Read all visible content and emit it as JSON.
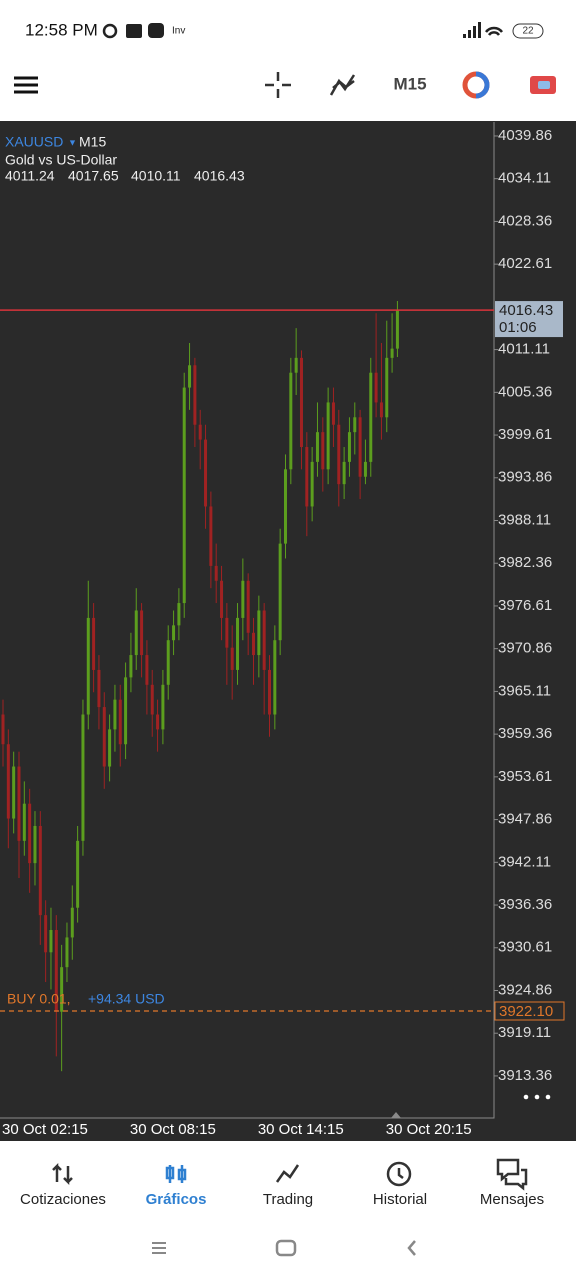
{
  "status_bar": {
    "time": "12:58 PM",
    "battery": "22"
  },
  "toolbar": {
    "timeframe": "M15"
  },
  "chart_data": {
    "type": "candlestick",
    "symbol": "XAUUSD",
    "timeframe": "M15",
    "description": "Gold vs US-Dollar",
    "countdown": "01:06",
    "up_color": "#5c9e1e",
    "down_color": "#a02222",
    "price_line_color": "#d9333a",
    "categories": [
      "30 Oct 02:15",
      null,
      null,
      null,
      null,
      null,
      null,
      null,
      null,
      null,
      null,
      null,
      null,
      null,
      null,
      null,
      null,
      null,
      null,
      null,
      null,
      null,
      null,
      null,
      "30 Oct 08:15",
      null,
      null,
      null,
      null,
      null,
      null,
      null,
      null,
      null,
      null,
      null,
      null,
      null,
      null,
      null,
      null,
      null,
      null,
      null,
      null,
      null,
      null,
      null,
      "30 Oct 14:15",
      null,
      null,
      null,
      null,
      null,
      null,
      null,
      null,
      null,
      null,
      null,
      null,
      null,
      null,
      null,
      null,
      null,
      null,
      null,
      null,
      null,
      null,
      null,
      "30 Oct 20:15",
      null,
      null
    ],
    "open": [
      3962,
      3958,
      3948,
      3955,
      3945,
      3950,
      3942,
      3947,
      3935,
      3930,
      3933,
      3922,
      3928,
      3932,
      3936,
      3945,
      3962,
      3975,
      3968,
      3963,
      3955,
      3960,
      3964,
      3958,
      3967,
      3970,
      3976,
      3970,
      3966,
      3962,
      3960,
      3966,
      3972,
      3974,
      3977,
      4006,
      4009,
      4001,
      3999,
      3990,
      3982,
      3980,
      3975,
      3971,
      3968,
      3975,
      3980,
      3973,
      3970,
      3976,
      3968,
      3962,
      3972,
      3985,
      3995,
      4008,
      4010,
      3998,
      3990,
      3996,
      4000,
      3995,
      4004,
      4001,
      3993,
      3996,
      4000,
      4002,
      3994,
      3996,
      4008,
      4004,
      4002,
      4010,
      4011.24
    ],
    "high": [
      3964,
      3960,
      3957,
      3957,
      3953,
      3952,
      3949,
      3949,
      3937,
      3936,
      3935,
      3931,
      3934,
      3939,
      3947,
      3964,
      3980,
      3977,
      3970,
      3965,
      3962,
      3966,
      3966,
      3969,
      3973,
      3979,
      3977,
      3972,
      3968,
      3964,
      3968,
      3974,
      3976,
      3979,
      4008,
      4012,
      4010,
      4003,
      4001,
      3992,
      3985,
      3982,
      3977,
      3974,
      3977,
      3983,
      3981,
      3975,
      3978,
      3977,
      3970,
      3974,
      3987,
      3997,
      4010,
      4014,
      4011,
      4000,
      3998,
      4004,
      4002,
      4006,
      4006,
      4003,
      3998,
      4002,
      4004,
      4003,
      3999,
      4010,
      4016,
      4012,
      4015,
      4016,
      4017.65
    ],
    "low": [
      3955,
      3944,
      3946,
      3940,
      3943,
      3938,
      3939,
      3931,
      3926,
      3925,
      3916,
      3914,
      3926,
      3929,
      3934,
      3943,
      3960,
      3965,
      3960,
      3952,
      3953,
      3957,
      3955,
      3956,
      3965,
      3968,
      3967,
      3962,
      3959,
      3957,
      3958,
      3964,
      3970,
      3972,
      3975,
      4003,
      3998,
      3995,
      3987,
      3979,
      3977,
      3972,
      3966,
      3964,
      3966,
      3972,
      3970,
      3966,
      3967,
      3962,
      3959,
      3960,
      3970,
      3983,
      3993,
      4005,
      3995,
      3986,
      3988,
      3994,
      3992,
      3993,
      3998,
      3990,
      3991,
      3994,
      3997,
      3991,
      3993,
      3994,
      4002,
      3999,
      4000,
      4008,
      4010.11
    ],
    "close": [
      3958,
      3948,
      3955,
      3945,
      3950,
      3942,
      3947,
      3935,
      3930,
      3933,
      3922,
      3928,
      3932,
      3936,
      3945,
      3962,
      3975,
      3968,
      3963,
      3955,
      3960,
      3964,
      3958,
      3967,
      3970,
      3976,
      3970,
      3966,
      3962,
      3960,
      3966,
      3972,
      3974,
      3977,
      4006,
      4009,
      4001,
      3999,
      3990,
      3982,
      3980,
      3975,
      3971,
      3968,
      3975,
      3980,
      3973,
      3970,
      3976,
      3968,
      3962,
      3972,
      3985,
      3995,
      4008,
      4010,
      3998,
      3990,
      3996,
      4000,
      3995,
      4004,
      4001,
      3993,
      3996,
      4000,
      4002,
      3994,
      3996,
      4008,
      4004,
      4002,
      4010,
      4011.24,
      4016.43
    ],
    "ylim": [
      3907.7,
      4041.74
    ],
    "yticks": [
      4039.86,
      4034.11,
      4028.36,
      4022.61,
      4011.11,
      4005.36,
      3999.61,
      3993.86,
      3988.11,
      3982.36,
      3976.61,
      3970.86,
      3965.11,
      3959.36,
      3953.61,
      3947.86,
      3942.11,
      3936.36,
      3930.61,
      3924.86,
      3919.11,
      3913.36
    ],
    "position": {
      "side": "BUY 0.01,",
      "profit": "+94.34 USD",
      "price": {
        "value": 3922.1,
        "label": "3922.10"
      },
      "color": "#e0772a"
    }
  },
  "nav": {
    "tabs": [
      "Cotizaciones",
      "Gráficos",
      "Trading",
      "Historial",
      "Mensajes"
    ]
  }
}
